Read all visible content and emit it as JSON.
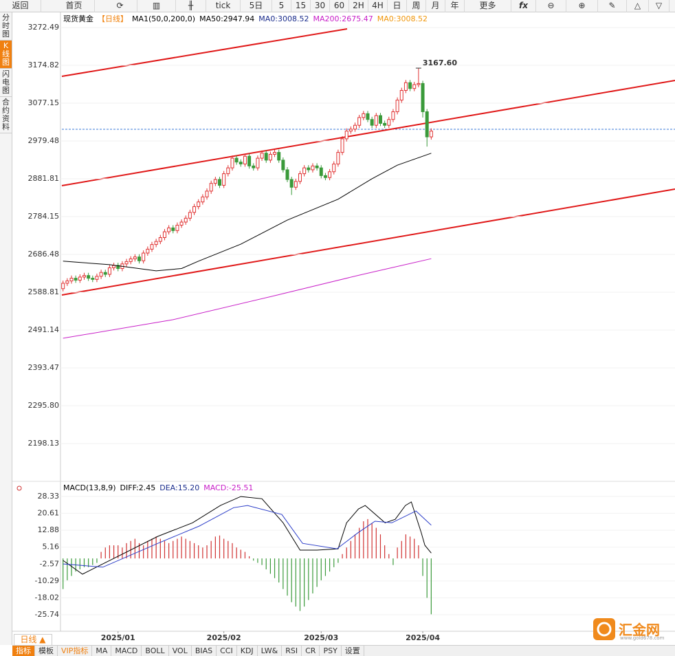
{
  "toolbar": [
    "返回",
    "首页",
    "tick",
    "5日",
    "5",
    "15",
    "30",
    "60",
    "2H",
    "4H",
    "日",
    "周",
    "月",
    "年",
    "更多",
    "fx"
  ],
  "sidebar": [
    "分时图",
    "K线图",
    "闪电图",
    "合约资料"
  ],
  "chart_data": [
    {
      "type": "candlestick",
      "title": "现货黄金",
      "subtitle": "【日线】",
      "title_color": "#000000",
      "subtitle_color": "#f0800a",
      "legend": [
        {
          "text": "MA1(50,0,200,0)",
          "color": "#000000"
        },
        {
          "text": "MA50:2947.94",
          "color": "#000000"
        },
        {
          "text": "MA0:3008.52",
          "color": "#1a2c8c"
        },
        {
          "text": "MA200:2675.47",
          "color": "#c81ec8"
        },
        {
          "text": "MA0:3008.52",
          "color": "#f0960a"
        }
      ],
      "up_color": "#e03030",
      "down_color": "#3a9a3a",
      "open": [
        2598,
        2612,
        2618,
        2625,
        2620,
        2628,
        2632,
        2625,
        2622,
        2630,
        2640,
        2635,
        2652,
        2658,
        2650,
        2662,
        2668,
        2675,
        2680,
        2670,
        2690,
        2700,
        2712,
        2720,
        2730,
        2745,
        2755,
        2748,
        2762,
        2770,
        2780,
        2795,
        2810,
        2822,
        2835,
        2850,
        2870,
        2880,
        2865,
        2895,
        2910,
        2935,
        2925,
        2920,
        2940,
        2915,
        2910,
        2935,
        2948,
        2930,
        2945,
        2950,
        2930,
        2905,
        2880,
        2860,
        2875,
        2895,
        2910,
        2905,
        2915,
        2910,
        2890,
        2885,
        2900,
        2920,
        2950,
        2985,
        3005,
        3010,
        3020,
        3040,
        3050,
        3035,
        3020,
        3045,
        3025,
        3020,
        3035,
        3055,
        3085,
        3110,
        3130,
        3115,
        3125,
        3128,
        3055,
        2990
      ],
      "high": [
        2619,
        2625,
        2632,
        2632,
        2635,
        2639,
        2639,
        2632,
        2637,
        2647,
        2647,
        2659,
        2665,
        2665,
        2669,
        2675,
        2682,
        2687,
        2687,
        2697,
        2707,
        2719,
        2727,
        2737,
        2752,
        2762,
        2762,
        2769,
        2777,
        2787,
        2802,
        2817,
        2829,
        2842,
        2857,
        2877,
        2887,
        2887,
        2902,
        2917,
        2942,
        2942,
        2932,
        2947,
        2947,
        2922,
        2942,
        2955,
        2955,
        2952,
        2957,
        2957,
        2937,
        2912,
        2887,
        2882,
        2902,
        2917,
        2917,
        2922,
        2922,
        2917,
        2897,
        2907,
        2927,
        2957,
        2992,
        3012,
        3017,
        3027,
        3047,
        3057,
        3057,
        3042,
        3052,
        3052,
        3032,
        3042,
        3062,
        3092,
        3117,
        3137,
        3137,
        3132,
        3167.6,
        3135,
        3062,
        3012
      ],
      "low": [
        2591,
        2605,
        2611,
        2613,
        2613,
        2621,
        2618,
        2615,
        2615,
        2623,
        2628,
        2628,
        2645,
        2643,
        2643,
        2655,
        2661,
        2668,
        2663,
        2663,
        2683,
        2693,
        2705,
        2713,
        2723,
        2738,
        2741,
        2741,
        2755,
        2763,
        2773,
        2788,
        2803,
        2815,
        2828,
        2843,
        2863,
        2858,
        2858,
        2888,
        2903,
        2918,
        2913,
        2913,
        2908,
        2903,
        2903,
        2928,
        2923,
        2923,
        2938,
        2923,
        2898,
        2873,
        2840,
        2853,
        2868,
        2888,
        2898,
        2898,
        2903,
        2883,
        2878,
        2878,
        2893,
        2913,
        2943,
        2978,
        2998,
        3003,
        3013,
        3033,
        3028,
        3013,
        3013,
        3018,
        3013,
        3013,
        3028,
        3048,
        3078,
        3103,
        3108,
        3108,
        3118,
        3040,
        2965,
        2983
      ],
      "close": [
        2612,
        2618,
        2625,
        2620,
        2628,
        2632,
        2625,
        2622,
        2630,
        2640,
        2635,
        2652,
        2658,
        2650,
        2662,
        2668,
        2675,
        2680,
        2670,
        2690,
        2700,
        2712,
        2720,
        2730,
        2745,
        2755,
        2748,
        2762,
        2770,
        2780,
        2795,
        2810,
        2822,
        2835,
        2850,
        2870,
        2880,
        2865,
        2895,
        2910,
        2935,
        2925,
        2920,
        2940,
        2915,
        2910,
        2935,
        2948,
        2930,
        2945,
        2950,
        2930,
        2905,
        2880,
        2860,
        2875,
        2895,
        2910,
        2905,
        2915,
        2910,
        2890,
        2885,
        2900,
        2920,
        2950,
        2985,
        3005,
        3010,
        3020,
        3040,
        3050,
        3035,
        3020,
        3045,
        3025,
        3020,
        3035,
        3055,
        3085,
        3110,
        3130,
        3115,
        3125,
        3128,
        3055,
        2990,
        3005
      ],
      "peak_label": "3167.60",
      "peak_color": "#d03030",
      "lines": [
        {
          "color": "#000000",
          "x": [
            0,
            11,
            22,
            28,
            32,
            42,
            53,
            65,
            73,
            79,
            87
          ],
          "values": [
            2669,
            2660,
            2644,
            2650,
            2669,
            2713,
            2775,
            2829,
            2882,
            2917,
            2947.94
          ]
        },
        {
          "color": "#c81ec8",
          "x": [
            0,
            26,
            50,
            70,
            87
          ],
          "values": [
            2470,
            2518,
            2580,
            2633,
            2675.47
          ]
        }
      ],
      "xlim": [
        -0.6,
        144.6
      ],
      "ylim": [
        2100.45,
        3311.56
      ],
      "yticks": [
        3272.49,
        3174.82,
        3077.15,
        2979.48,
        2881.81,
        2784.15,
        2686.48,
        2588.81,
        2491.14,
        2393.47,
        {
          "value": 2295.8,
          "label": "2295.80"
        },
        2198.13
      ],
      "grid": true
    },
    {
      "type": "macd",
      "title": "MACD(13,8,9)",
      "title_color": "#000000",
      "legend": [
        {
          "text": "DIFF:2.45",
          "color": "#000000"
        },
        {
          "text": "DEA:15.20",
          "color": "#1a2c8c"
        },
        {
          "text": "MACD:-25.51",
          "color": "#c81ec8"
        }
      ],
      "up_color": "#d03030",
      "down_color": "#3a9a3a",
      "values": [
        -14,
        -10,
        -8,
        -6,
        -5,
        -4,
        -4,
        -3,
        -2,
        3,
        5,
        6,
        6,
        6,
        5,
        7,
        8,
        9,
        7,
        6,
        8,
        9,
        10,
        9,
        8,
        7,
        8,
        9,
        10,
        9,
        8,
        7,
        6,
        5,
        6,
        8,
        10,
        10.5,
        9,
        8,
        7,
        5,
        4,
        3,
        1,
        -1,
        -2,
        -3,
        -5,
        -7,
        -9,
        -11,
        -14,
        -17,
        -20,
        -22,
        -24,
        -22,
        -19,
        -16,
        -13,
        -10,
        -8,
        -6,
        -4,
        -2,
        2,
        5,
        8,
        11,
        14,
        17,
        18,
        16,
        14,
        11,
        6,
        2,
        -3,
        5,
        8,
        11,
        10,
        9,
        6,
        -8,
        -18,
        -25.51
      ],
      "lines": [
        {
          "color": "#000000",
          "x": [
            0,
            4.6,
            9.4,
            22.4,
            30.6,
            37.2,
            42,
            47,
            52,
            56,
            60,
            65,
            67,
            69.8,
            71.4,
            76.1,
            78.5,
            80.9,
            82.3,
            84.6,
            85.5,
            87
          ],
          "values": [
            -0.9,
            -7.2,
            -2.5,
            10.1,
            16.3,
            24.2,
            28.3,
            27.3,
            16.3,
            3.8,
            3.8,
            4.4,
            16.3,
            22.6,
            24.2,
            16.3,
            17.9,
            24.2,
            25.8,
            12,
            6,
            2.45
          ]
        },
        {
          "color": "#2a3cc8",
          "x": [
            0,
            9.4,
            22.4,
            32.2,
            40.3,
            43.6,
            51.7,
            56.6,
            64.7,
            69.6,
            73.7,
            77.7,
            83.4,
            87
          ],
          "values": [
            -2.5,
            -4,
            6.9,
            14.8,
            23.2,
            24.2,
            20.1,
            6.9,
            4.4,
            11.6,
            17,
            16.3,
            21.7,
            15.2
          ]
        }
      ],
      "xlim": [
        -0.6,
        144.6
      ],
      "ylim": [
        -33.28,
        34.3
      ],
      "yticks": [
        28.33,
        20.61,
        12.88,
        5.16,
        -2.57,
        -10.29,
        -18.02,
        -25.74
      ],
      "xticks": [
        {
          "value": 13,
          "label": "2025/01"
        },
        {
          "value": 38,
          "label": "2025/02"
        },
        {
          "value": 61,
          "label": "2025/03"
        },
        {
          "value": 85,
          "label": "2025/04"
        }
      ],
      "grid": true
    }
  ],
  "period_button": "日线 ▲",
  "tabs": [
    "指标",
    "模板",
    "VIP指标",
    "MA",
    "MACD",
    "BOLL",
    "VOL",
    "BIAS",
    "CCI",
    "KDJ",
    "LW&",
    "RSI",
    "CR",
    "PSY",
    "设置"
  ],
  "watermark": {
    "name": "汇金网",
    "url": "www.gold678.com"
  }
}
